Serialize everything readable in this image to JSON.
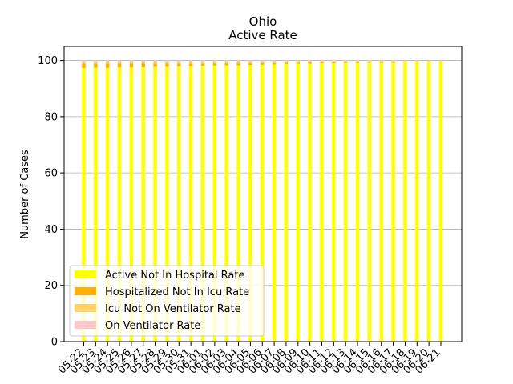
{
  "chart_data": {
    "type": "bar",
    "stacked": true,
    "title": "Ohio",
    "subtitle": "Active Rate",
    "xlabel": "",
    "ylabel": "Number of Cases",
    "ylim": [
      0,
      105
    ],
    "yticks": [
      0,
      20,
      40,
      60,
      80,
      100
    ],
    "grid": "y",
    "legend_position": "lower-left",
    "categories": [
      "05-22",
      "05-23",
      "05-24",
      "05-25",
      "05-26",
      "05-27",
      "05-28",
      "05-29",
      "05-30",
      "05-31",
      "06-01",
      "06-02",
      "06-03",
      "06-04",
      "06-05",
      "06-06",
      "06-07",
      "06-08",
      "06-09",
      "06-10",
      "06-11",
      "06-12",
      "06-13",
      "06-14",
      "06-15",
      "06-16",
      "06-17",
      "06-18",
      "06-19",
      "06-20",
      "06-21"
    ],
    "series": [
      {
        "name": "Active Not In Hospital Rate",
        "color": "#ffff00",
        "values": [
          97.3,
          97.4,
          97.4,
          97.5,
          97.5,
          97.6,
          97.7,
          97.8,
          97.9,
          98.0,
          98.1,
          98.2,
          98.3,
          98.3,
          98.4,
          98.5,
          98.6,
          98.7,
          98.8,
          98.9,
          99.0,
          99.0,
          99.1,
          99.1,
          99.2,
          99.2,
          99.2,
          99.3,
          99.3,
          99.3,
          99.3
        ]
      },
      {
        "name": "Hospitalized Not In Icu Rate",
        "color": "#ffb000",
        "values": [
          1.6,
          1.5,
          1.5,
          1.4,
          1.4,
          1.3,
          1.2,
          1.1,
          1.0,
          0.9,
          0.8,
          0.8,
          0.7,
          0.7,
          0.6,
          0.6,
          0.5,
          0.5,
          0.4,
          0.4,
          0.4,
          0.4,
          0.3,
          0.3,
          0.3,
          0.3,
          0.3,
          0.3,
          0.3,
          0.3,
          0.3
        ]
      },
      {
        "name": "Icu Not On Ventilator Rate",
        "color": "#ffd166",
        "values": [
          0.6,
          0.6,
          0.6,
          0.6,
          0.6,
          0.6,
          0.6,
          0.6,
          0.6,
          0.6,
          0.6,
          0.5,
          0.5,
          0.5,
          0.5,
          0.4,
          0.4,
          0.4,
          0.4,
          0.3,
          0.3,
          0.3,
          0.3,
          0.3,
          0.2,
          0.2,
          0.2,
          0.2,
          0.2,
          0.2,
          0.2
        ]
      },
      {
        "name": "On Ventilator Rate",
        "color": "#ffc8c8",
        "values": [
          0.5,
          0.5,
          0.5,
          0.5,
          0.5,
          0.5,
          0.5,
          0.5,
          0.5,
          0.5,
          0.5,
          0.5,
          0.5,
          0.5,
          0.5,
          0.5,
          0.5,
          0.4,
          0.4,
          0.4,
          0.3,
          0.3,
          0.3,
          0.3,
          0.3,
          0.3,
          0.3,
          0.2,
          0.2,
          0.2,
          0.2
        ]
      }
    ]
  }
}
